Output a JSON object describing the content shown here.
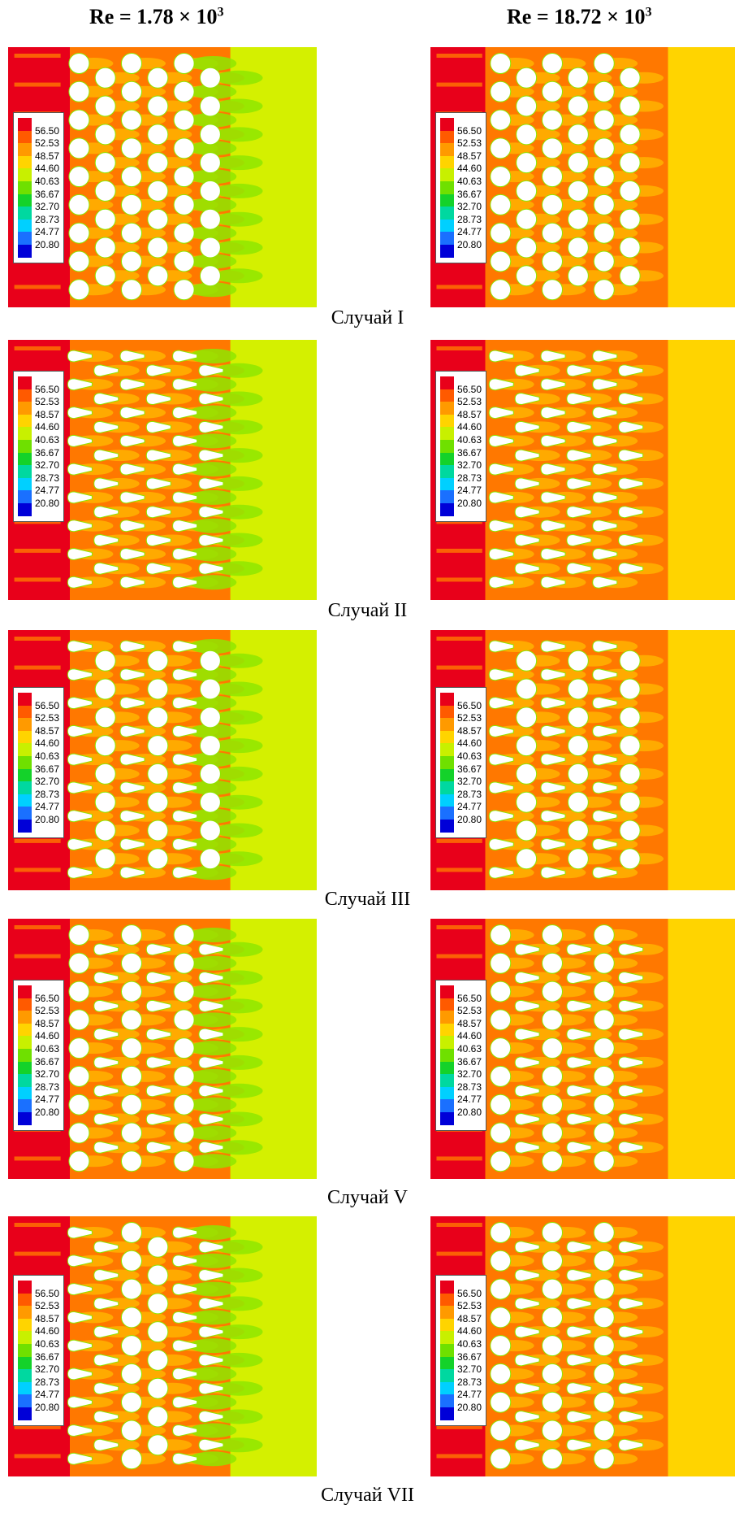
{
  "columns": [
    {
      "re_prefix": "Re = 1.78 × 10",
      "re_exp": "3"
    },
    {
      "re_prefix": "Re = 18.72 × 10",
      "re_exp": "3"
    }
  ],
  "cases": [
    "Случай I",
    "Случай II",
    "Случай III",
    "Случай V",
    "Случай VII"
  ],
  "legend": {
    "values": [
      "56.50",
      "52.53",
      "48.57",
      "44.60",
      "40.63",
      "36.67",
      "32.70",
      "28.73",
      "24.77",
      "20.80"
    ],
    "colors": [
      "#e8001a",
      "#ff5a00",
      "#ff9a00",
      "#ffd400",
      "#c8f000",
      "#6fe000",
      "#14d22a",
      "#00d8a0",
      "#00d0ff",
      "#1a70ff",
      "#0000d8"
    ]
  },
  "palette": {
    "red": "#e8001a",
    "orange": "#ff7800",
    "amber": "#ffaa00",
    "yellow": "#ffd400",
    "lime": "#d4f000",
    "green": "#8ee600",
    "white": "#ffffff"
  }
}
